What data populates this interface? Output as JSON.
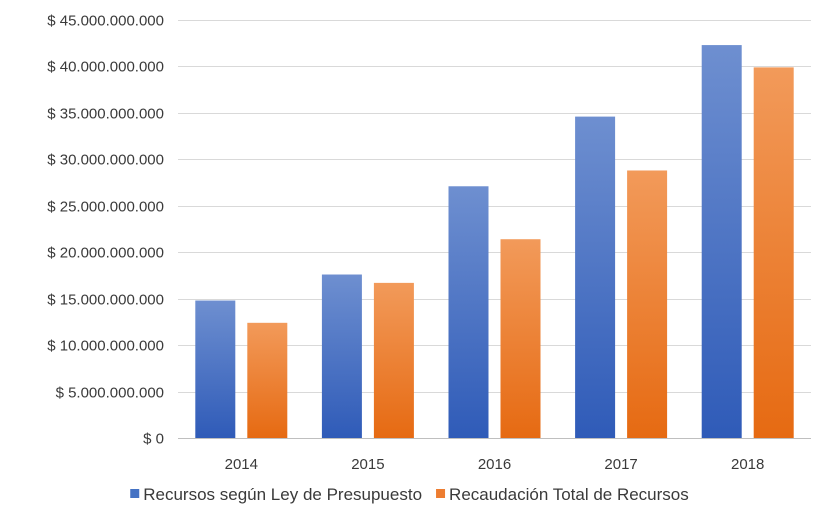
{
  "chart_data": {
    "type": "bar",
    "title": "",
    "xlabel": "",
    "ylabel": "",
    "categories": [
      "2014",
      "2015",
      "2016",
      "2017",
      "2018"
    ],
    "series": [
      {
        "name": "Recursos según Ley de Presupuesto",
        "values": [
          14800000000,
          17600000000,
          27100000000,
          34600000000,
          42300000000
        ],
        "color": "#4472C4"
      },
      {
        "name": "Recaudación Total de Recursos",
        "values": [
          12400000000,
          16700000000,
          21400000000,
          28800000000,
          39900000000
        ],
        "color": "#ED7D31"
      }
    ],
    "ylim": [
      0,
      45000000000
    ],
    "y_ticks": [
      0,
      5000000000,
      10000000000,
      15000000000,
      20000000000,
      25000000000,
      30000000000,
      35000000000,
      40000000000,
      45000000000
    ],
    "y_tick_labels": [
      "$ 0",
      "$ 5.000.000.000",
      "$ 10.000.000.000",
      "$ 15.000.000.000",
      "$ 20.000.000.000",
      "$ 25.000.000.000",
      "$ 30.000.000.000",
      "$ 35.000.000.000",
      "$ 40.000.000.000",
      "$ 45.000.000.000"
    ],
    "grid": true,
    "legend_position": "bottom"
  }
}
